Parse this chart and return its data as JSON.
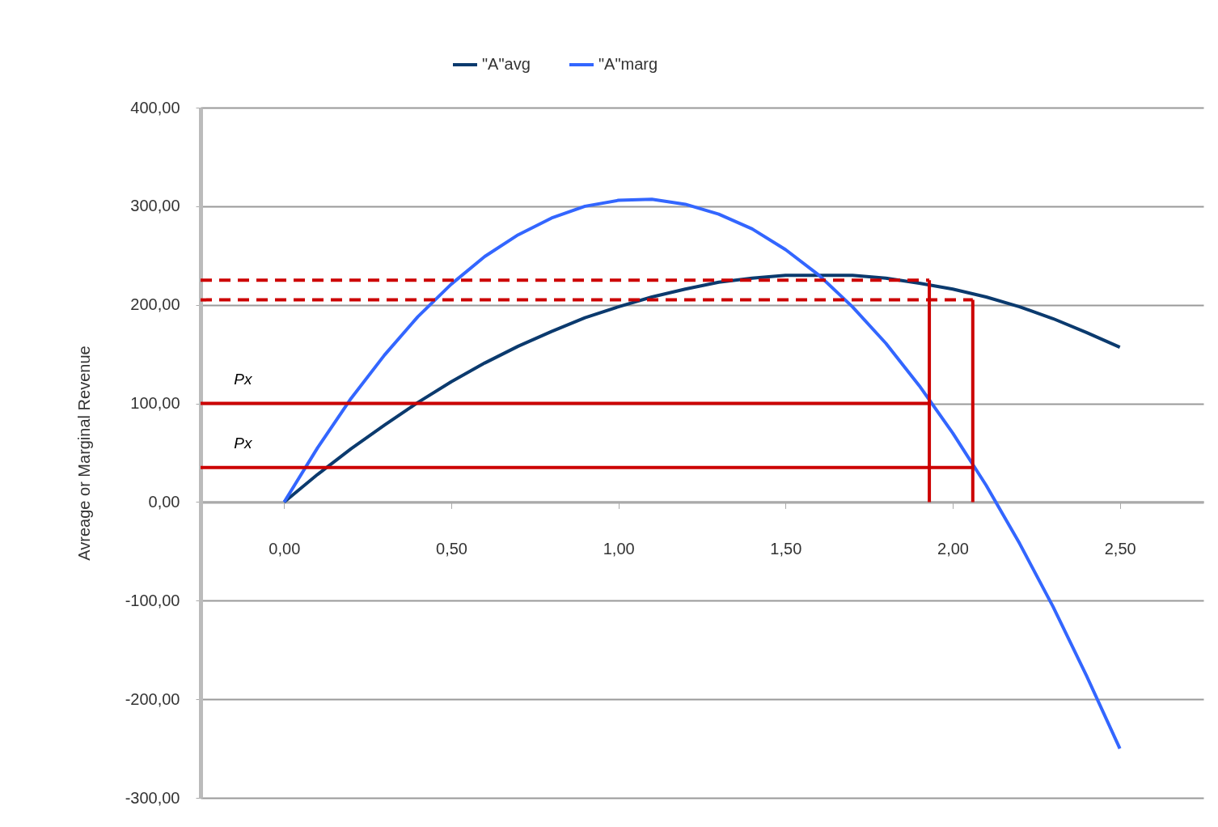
{
  "chart_data": {
    "type": "line",
    "ylabel": "Avreage or Marginal Revenue",
    "x": [
      0,
      0.1,
      0.2,
      0.3,
      0.4,
      0.5,
      0.6,
      0.7,
      0.8,
      0.9,
      1.0,
      1.1,
      1.2,
      1.3,
      1.4,
      1.5,
      1.6,
      1.7,
      1.8,
      1.9,
      2.0,
      2.1,
      2.2,
      2.3,
      2.4,
      2.5
    ],
    "series": [
      {
        "name": "\"A\"avg",
        "color": "#0b3a6e",
        "values": [
          0,
          28,
          54,
          78,
          101,
          122,
          141,
          158,
          173,
          187,
          198,
          208,
          216,
          223,
          227,
          230,
          230,
          230,
          227,
          222,
          216,
          208,
          198,
          186,
          172,
          157
        ]
      },
      {
        "name": "\"A\"marg",
        "color": "#3366ff",
        "values": [
          0,
          55,
          105,
          149,
          188,
          221,
          249,
          271,
          288,
          300,
          306,
          307,
          302,
          292,
          277,
          256,
          230,
          198,
          161,
          118,
          70,
          17,
          -42,
          -106,
          -176,
          -250
        ]
      },
      {
        "color": "#cc0000",
        "line_style": "dashed",
        "x": [
          -0.25,
          1.93
        ],
        "values": [
          225,
          225
        ]
      },
      {
        "color": "#cc0000",
        "line_style": "dashed",
        "x": [
          -0.25,
          2.06
        ],
        "values": [
          205,
          205
        ]
      },
      {
        "color": "#cc0000",
        "x": [
          -0.25,
          1.93
        ],
        "values": [
          100,
          100
        ]
      },
      {
        "color": "#cc0000",
        "x": [
          -0.25,
          2.06
        ],
        "values": [
          35,
          35
        ]
      },
      {
        "color": "#cc0000",
        "x": [
          1.93,
          1.93
        ],
        "values": [
          0,
          225
        ]
      },
      {
        "color": "#cc0000",
        "x": [
          2.06,
          2.06
        ],
        "values": [
          0,
          205
        ]
      }
    ],
    "annotations": [
      {
        "text": "Px",
        "x": -0.15,
        "y": 100
      },
      {
        "text": "Px",
        "x": -0.15,
        "y": 35
      }
    ],
    "xlim": [
      -0.25,
      2.75
    ],
    "xticks": [
      {
        "value": 0,
        "label": "0,00"
      },
      {
        "value": 0.5,
        "label": "0,50"
      },
      {
        "value": 1,
        "label": "1,00"
      },
      {
        "value": 1.5,
        "label": "1,50"
      },
      {
        "value": 2,
        "label": "2,00"
      },
      {
        "value": 2.5,
        "label": "2,50"
      }
    ],
    "ylim": [
      -300,
      400
    ],
    "yticks": [
      {
        "value": -300,
        "label": "-300,00"
      },
      {
        "value": -200,
        "label": "-200,00"
      },
      {
        "value": -100,
        "label": "-100,00"
      },
      {
        "value": 0,
        "label": "0,00"
      },
      {
        "value": 100,
        "label": "100,00"
      },
      {
        "value": 200,
        "label": "200,00"
      },
      {
        "value": 300,
        "label": "300,00"
      },
      {
        "value": 400,
        "label": "400,00"
      }
    ],
    "grid": "y",
    "legend": "top",
    "marker": "none",
    "line_style": "solid"
  }
}
